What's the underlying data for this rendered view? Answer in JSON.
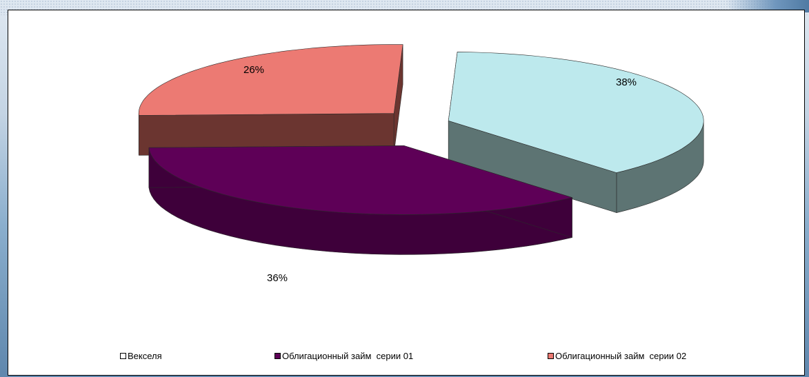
{
  "chart_data": {
    "type": "pie",
    "title": "",
    "slices": [
      {
        "name": "Векселя",
        "value": 38,
        "label": "38%",
        "color": "#bde9ed",
        "side_color": "#5d7473"
      },
      {
        "name": "Облигационный займ  серии 01",
        "value": 36,
        "label": "36%",
        "color": "#5e0057",
        "side_color": "#3e003a"
      },
      {
        "name": "Облигационный займ  серии 02",
        "value": 26,
        "label": "26%",
        "color": "#ec7a73",
        "side_color": "#6b3530"
      }
    ],
    "legend_position": "bottom",
    "three_d": true,
    "exploded": true
  },
  "legend": {
    "items": [
      {
        "label": "Векселя",
        "swatch": "#ffffff"
      },
      {
        "label": "Облигационный займ  серии 01",
        "swatch": "#5e0057"
      },
      {
        "label": "Облигационный займ  серии 02",
        "swatch": "#ec7a73"
      }
    ]
  }
}
